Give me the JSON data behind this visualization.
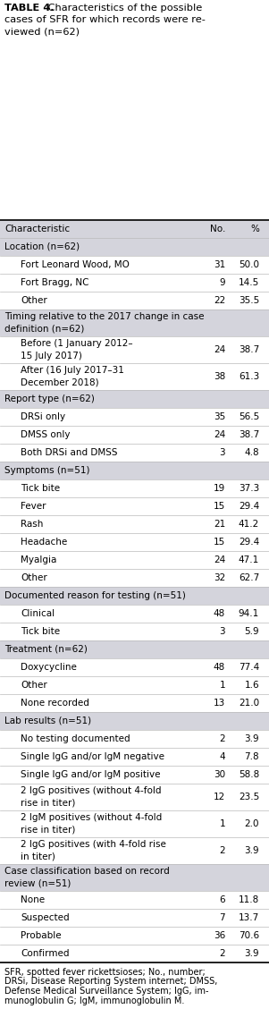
{
  "section_bg": "#d4d4dc",
  "title_line1_bold": "TABLE 4.",
  "title_line1_rest": " Characteristics of the possible",
  "title_line2": "cases of SFR for which records were re-",
  "title_line3": "viewed (n=62)",
  "footnote_lines": [
    "SFR, spotted fever rickettsioses; No., number;",
    "DRSi, Disease Reporting System internet; DMSS,",
    "Defense Medical Surveillance System; IgG, im-",
    "munoglobulin G; IgM, immunoglobulin M."
  ],
  "col_header": [
    "Characteristic",
    "No.",
    "%"
  ],
  "rows": [
    {
      "type": "header",
      "lines": [
        "Characteristic"
      ],
      "no": "No.",
      "pct": "%"
    },
    {
      "type": "section",
      "lines": [
        "Location (n=62)"
      ],
      "no": "",
      "pct": ""
    },
    {
      "type": "data",
      "lines": [
        "Fort Leonard Wood, MO"
      ],
      "no": "31",
      "pct": "50.0"
    },
    {
      "type": "data",
      "lines": [
        "Fort Bragg, NC"
      ],
      "no": "9",
      "pct": "14.5"
    },
    {
      "type": "data",
      "lines": [
        "Other"
      ],
      "no": "22",
      "pct": "35.5"
    },
    {
      "type": "section",
      "lines": [
        "Timing relative to the 2017 change in case",
        "definition (n=62)"
      ],
      "no": "",
      "pct": ""
    },
    {
      "type": "data",
      "lines": [
        "Before (1 January 2012–",
        "15 July 2017)"
      ],
      "no": "24",
      "pct": "38.7"
    },
    {
      "type": "data",
      "lines": [
        "After (16 July 2017–31",
        "December 2018)"
      ],
      "no": "38",
      "pct": "61.3"
    },
    {
      "type": "section",
      "lines": [
        "Report type (n=62)"
      ],
      "no": "",
      "pct": ""
    },
    {
      "type": "data",
      "lines": [
        "DRSi only"
      ],
      "no": "35",
      "pct": "56.5"
    },
    {
      "type": "data",
      "lines": [
        "DMSS only"
      ],
      "no": "24",
      "pct": "38.7"
    },
    {
      "type": "data",
      "lines": [
        "Both DRSi and DMSS"
      ],
      "no": "3",
      "pct": "4.8"
    },
    {
      "type": "section",
      "lines": [
        "Symptoms (n=51)"
      ],
      "no": "",
      "pct": ""
    },
    {
      "type": "data",
      "lines": [
        "Tick bite"
      ],
      "no": "19",
      "pct": "37.3"
    },
    {
      "type": "data",
      "lines": [
        "Fever"
      ],
      "no": "15",
      "pct": "29.4"
    },
    {
      "type": "data",
      "lines": [
        "Rash"
      ],
      "no": "21",
      "pct": "41.2"
    },
    {
      "type": "data",
      "lines": [
        "Headache"
      ],
      "no": "15",
      "pct": "29.4"
    },
    {
      "type": "data",
      "lines": [
        "Myalgia"
      ],
      "no": "24",
      "pct": "47.1"
    },
    {
      "type": "data",
      "lines": [
        "Other"
      ],
      "no": "32",
      "pct": "62.7"
    },
    {
      "type": "section",
      "lines": [
        "Documented reason for testing (n=51)"
      ],
      "no": "",
      "pct": ""
    },
    {
      "type": "data",
      "lines": [
        "Clinical"
      ],
      "no": "48",
      "pct": "94.1"
    },
    {
      "type": "data",
      "lines": [
        "Tick bite"
      ],
      "no": "3",
      "pct": "5.9"
    },
    {
      "type": "section",
      "lines": [
        "Treatment (n=62)"
      ],
      "no": "",
      "pct": ""
    },
    {
      "type": "data",
      "lines": [
        "Doxycycline"
      ],
      "no": "48",
      "pct": "77.4"
    },
    {
      "type": "data",
      "lines": [
        "Other"
      ],
      "no": "1",
      "pct": "1.6"
    },
    {
      "type": "data",
      "lines": [
        "None recorded"
      ],
      "no": "13",
      "pct": "21.0"
    },
    {
      "type": "section",
      "lines": [
        "Lab results (n=51)"
      ],
      "no": "",
      "pct": ""
    },
    {
      "type": "data",
      "lines": [
        "No testing documented"
      ],
      "no": "2",
      "pct": "3.9"
    },
    {
      "type": "data",
      "lines": [
        "Single IgG and/or IgM negative"
      ],
      "no": "4",
      "pct": "7.8"
    },
    {
      "type": "data",
      "lines": [
        "Single IgG and/or IgM positive"
      ],
      "no": "30",
      "pct": "58.8"
    },
    {
      "type": "data",
      "lines": [
        "2 IgG positives (without 4-fold",
        "rise in titer)"
      ],
      "no": "12",
      "pct": "23.5"
    },
    {
      "type": "data",
      "lines": [
        "2 IgM positives (without 4-fold",
        "rise in titer)"
      ],
      "no": "1",
      "pct": "2.0"
    },
    {
      "type": "data",
      "lines": [
        "2 IgG positives (with 4-fold rise",
        "in titer)"
      ],
      "no": "2",
      "pct": "3.9"
    },
    {
      "type": "section",
      "lines": [
        "Case classification based on record",
        "review (n=51)"
      ],
      "no": "",
      "pct": ""
    },
    {
      "type": "data",
      "lines": [
        "None"
      ],
      "no": "6",
      "pct": "11.8"
    },
    {
      "type": "data",
      "lines": [
        "Suspected"
      ],
      "no": "7",
      "pct": "13.7"
    },
    {
      "type": "data",
      "lines": [
        "Probable"
      ],
      "no": "36",
      "pct": "70.6"
    },
    {
      "type": "data",
      "lines": [
        "Confirmed"
      ],
      "no": "2",
      "pct": "3.9"
    }
  ]
}
